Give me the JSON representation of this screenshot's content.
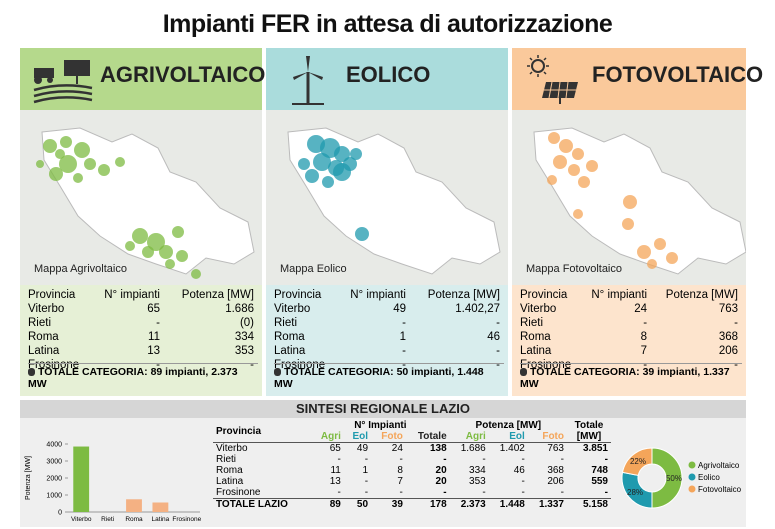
{
  "title": "Impianti FER in attesa di autorizzazione",
  "panels": [
    {
      "name": "AGRIVOLTAICO",
      "map_label": "Mappa Agrivoltaico",
      "columns": [
        "Provincia",
        "N° impianti",
        "Potenza [MW]"
      ],
      "rows": [
        [
          "Viterbo",
          "65",
          "1.686"
        ],
        [
          "Rieti",
          "-",
          "(0)"
        ],
        [
          "Roma",
          "11",
          "334"
        ],
        [
          "Latina",
          "13",
          "353"
        ],
        [
          "Frosinone",
          "-",
          "-"
        ]
      ],
      "total": "TOTALE CATEGORIA: 89 impianti, 2.373 MW"
    },
    {
      "name": "EOLICO",
      "map_label": "Mappa Eolico",
      "columns": [
        "Provincia",
        "N° impianti",
        "Potenza [MW]"
      ],
      "rows": [
        [
          "Viterbo",
          "49",
          "1.402,27"
        ],
        [
          "Rieti",
          "-",
          "-"
        ],
        [
          "Roma",
          "1",
          "46"
        ],
        [
          "Latina",
          "-",
          "-"
        ],
        [
          "Frosinone",
          "-",
          "-"
        ]
      ],
      "total": "TOTALE CATEGORIA: 50 impianti, 1.448 MW"
    },
    {
      "name": "FOTOVOLTAICO",
      "map_label": "Mappa Fotovoltaico",
      "columns": [
        "Provincia",
        "N° impianti",
        "Potenza [MW]"
      ],
      "rows": [
        [
          "Viterbo",
          "24",
          "763"
        ],
        [
          "Rieti",
          "-",
          "-"
        ],
        [
          "Roma",
          "8",
          "368"
        ],
        [
          "Latina",
          "7",
          "206"
        ],
        [
          "Frosinone",
          "-",
          "-"
        ]
      ],
      "total": "TOTALE CATEGORIA: 39 impianti, 1.337 MW"
    }
  ],
  "summary": {
    "title": "SINTESI REGIONALE LAZIO",
    "header": [
      "Provincia",
      "N° Impianti",
      "Potenza [MW]",
      "Totale [MW]"
    ],
    "subheader": [
      "Agri",
      "Eol",
      "Foto",
      "Totale",
      "Agri",
      "Eol",
      "Foto"
    ],
    "rows": [
      [
        "Viterbo",
        "65",
        "49",
        "24",
        "138",
        "1.686",
        "1.402",
        "763",
        "3.851"
      ],
      [
        "Rieti",
        "-",
        "-",
        "-",
        "-",
        "-",
        "-",
        "-",
        "-"
      ],
      [
        "Roma",
        "11",
        "1",
        "8",
        "20",
        "334",
        "46",
        "368",
        "748"
      ],
      [
        "Latina",
        "13",
        "-",
        "7",
        "20",
        "353",
        "-",
        "206",
        "559"
      ],
      [
        "Frosinone",
        "-",
        "-",
        "-",
        "-",
        "-",
        "-",
        "-",
        "-"
      ],
      [
        "TOTALE LAZIO",
        "89",
        "50",
        "39",
        "178",
        "2.373",
        "1.448",
        "1.337",
        "5.158"
      ]
    ]
  },
  "chart_data": [
    {
      "type": "bar",
      "y_label": "Potenza [MW]",
      "categories": [
        "Viterbo",
        "Rieti",
        "Roma",
        "Latina",
        "Frosinone"
      ],
      "values": [
        3851,
        null,
        748,
        559,
        null
      ],
      "colors": [
        "#7dbb42",
        "#f4b183",
        "#f4b183",
        "#f4b183",
        "#f4b183"
      ],
      "ylim": [
        0,
        4000
      ],
      "yticks": [
        0,
        1000,
        2000,
        3000,
        4000
      ]
    },
    {
      "type": "pie",
      "series": [
        {
          "name": "Agrivoltaico",
          "color": "#7dbb42",
          "values": [
            50
          ],
          "value_labels": [
            "50%"
          ]
        },
        {
          "name": "Eolico",
          "color": "#1f9aae",
          "values": [
            28
          ],
          "value_labels": [
            "28%"
          ]
        },
        {
          "name": "Fotovoltaico",
          "color": "#f4a55a",
          "values": [
            22
          ],
          "value_labels": [
            "22%"
          ]
        }
      ]
    }
  ]
}
